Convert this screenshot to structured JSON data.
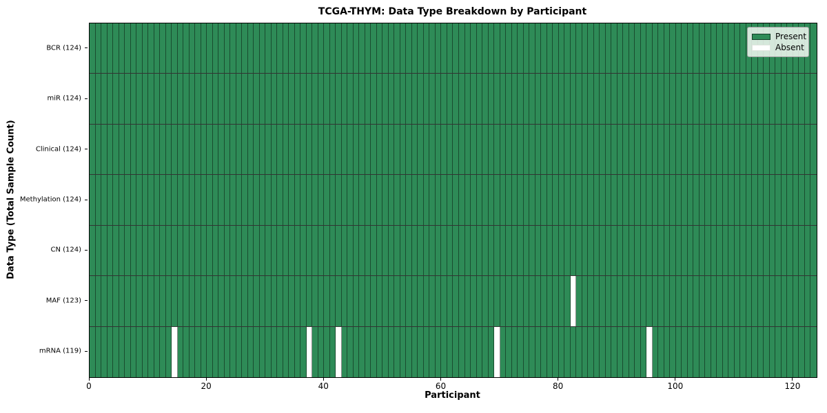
{
  "chart_data": {
    "type": "heatmap",
    "title": "TCGA-THYM: Data Type Breakdown by Participant",
    "xlabel": "Participant",
    "ylabel": "Data Type (Total Sample Count)",
    "n_participants": 124,
    "xlim": [
      0,
      124
    ],
    "x_ticks": [
      0,
      20,
      40,
      60,
      80,
      100,
      120
    ],
    "grid": "cell-edges",
    "legend_position": "upper right",
    "legend": [
      {
        "label": "Present",
        "color": "#2e8b57"
      },
      {
        "label": "Absent",
        "color": "#ffffff"
      }
    ],
    "colors": {
      "present": "#2e8b57",
      "absent": "#ffffff"
    },
    "rows": [
      {
        "label": "BCR",
        "total": 124,
        "tick_label": "BCR (124)",
        "absent_participants": []
      },
      {
        "label": "miR",
        "total": 124,
        "tick_label": "miR (124)",
        "absent_participants": []
      },
      {
        "label": "Clinical",
        "total": 124,
        "tick_label": "Clinical (124)",
        "absent_participants": []
      },
      {
        "label": "Methylation",
        "total": 124,
        "tick_label": "Methylation (124)",
        "absent_participants": []
      },
      {
        "label": "CN",
        "total": 124,
        "tick_label": "CN (124)",
        "absent_participants": []
      },
      {
        "label": "MAF",
        "total": 123,
        "tick_label": "MAF (123)",
        "absent_participants": [
          82
        ]
      },
      {
        "label": "mRNA",
        "total": 119,
        "tick_label": "mRNA (119)",
        "absent_participants": [
          14,
          37,
          42,
          69,
          95
        ]
      }
    ]
  }
}
